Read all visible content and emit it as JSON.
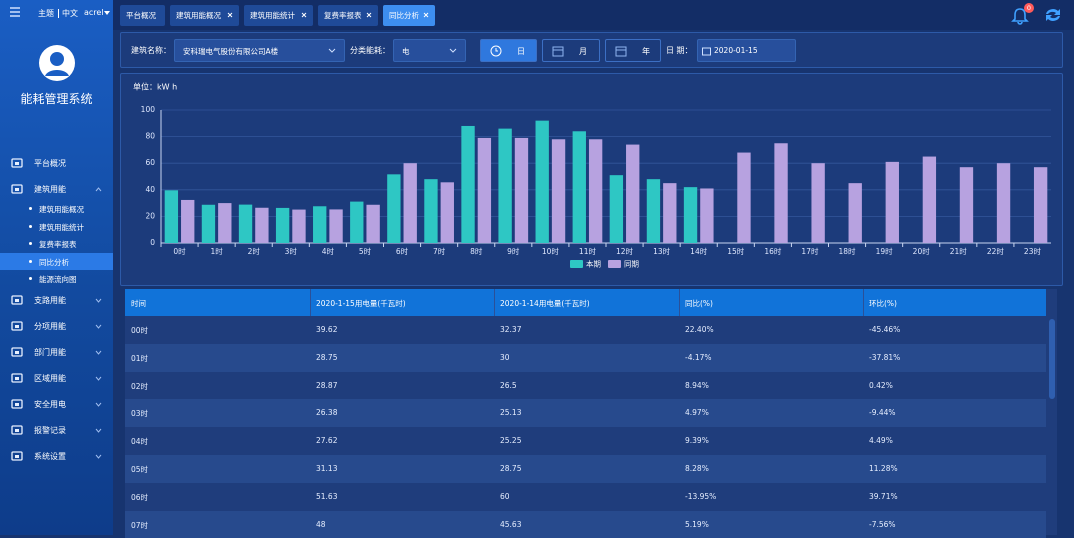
{
  "sidebar": {
    "theme": "主题",
    "lang": "中文",
    "user": "acrel",
    "app_title": "能耗管理系统",
    "menu": [
      {
        "label": "平台概况"
      },
      {
        "label": "建筑用能",
        "children": [
          "建筑用能概况",
          "建筑用能统计",
          "复费率报表",
          "同比分析",
          "能源流向图"
        ]
      },
      {
        "label": "支路用能"
      },
      {
        "label": "分项用能"
      },
      {
        "label": "部门用能"
      },
      {
        "label": "区域用能"
      },
      {
        "label": "安全用电"
      },
      {
        "label": "报警记录"
      },
      {
        "label": "系统设置"
      }
    ]
  },
  "tabs": [
    "平台概况",
    "建筑用能概况",
    "建筑用能统计",
    "复费率报表",
    "同比分析"
  ],
  "notification_count": 0,
  "filters": {
    "building_label": "建筑名称：",
    "building": "安科瑞电气股份有限公司A楼",
    "category_label": "分类能耗：",
    "category": "电",
    "periods": [
      "日",
      "月",
      "年"
    ],
    "date_label": "日 期：",
    "date": "2020-01-15"
  },
  "chart_data": {
    "type": "bar",
    "unit_label": "单位：kW h",
    "categories": [
      "0时",
      "1时",
      "2时",
      "3时",
      "4时",
      "5时",
      "6时",
      "7时",
      "8时",
      "9时",
      "10时",
      "11时",
      "12时",
      "13时",
      "14时",
      "15时",
      "16时",
      "17时",
      "18时",
      "19时",
      "20时",
      "21时",
      "22时",
      "23时"
    ],
    "series": [
      {
        "name": "本期",
        "color": "#2ec7c4",
        "values": [
          39.62,
          28.75,
          28.87,
          26.38,
          27.62,
          31.13,
          51.63,
          48,
          88,
          86,
          92,
          84,
          51,
          48,
          42,
          null,
          null,
          null,
          null,
          null,
          null,
          null,
          null,
          null
        ]
      },
      {
        "name": "同期",
        "color": "#b7a2e0",
        "values": [
          32.37,
          30,
          26.5,
          25.13,
          25.25,
          28.75,
          60,
          45.63,
          79,
          79,
          78,
          78,
          74,
          45,
          41,
          68,
          75,
          60,
          45,
          61,
          65,
          57,
          60,
          57
        ]
      }
    ],
    "ylim": [
      0,
      100
    ],
    "yticks": [
      0,
      20,
      40,
      60,
      80,
      100
    ],
    "grid": true
  },
  "table": {
    "columns": [
      "时间",
      "2020-1-15用电量(千瓦时)",
      "2020-1-14用电量(千瓦时)",
      "同比(%)",
      "环比(%)"
    ],
    "rows": [
      [
        "00时",
        "39.62",
        "32.37",
        "22.40%",
        "-45.46%"
      ],
      [
        "01时",
        "28.75",
        "30",
        "-4.17%",
        "-37.81%"
      ],
      [
        "02时",
        "28.87",
        "26.5",
        "8.94%",
        "0.42%"
      ],
      [
        "03时",
        "26.38",
        "25.13",
        "4.97%",
        "-9.44%"
      ],
      [
        "04时",
        "27.62",
        "25.25",
        "9.39%",
        "4.49%"
      ],
      [
        "05时",
        "31.13",
        "28.75",
        "8.28%",
        "11.28%"
      ],
      [
        "06时",
        "51.63",
        "60",
        "-13.95%",
        "39.71%"
      ],
      [
        "07时",
        "48",
        "45.63",
        "5.19%",
        "-7.56%"
      ]
    ]
  }
}
